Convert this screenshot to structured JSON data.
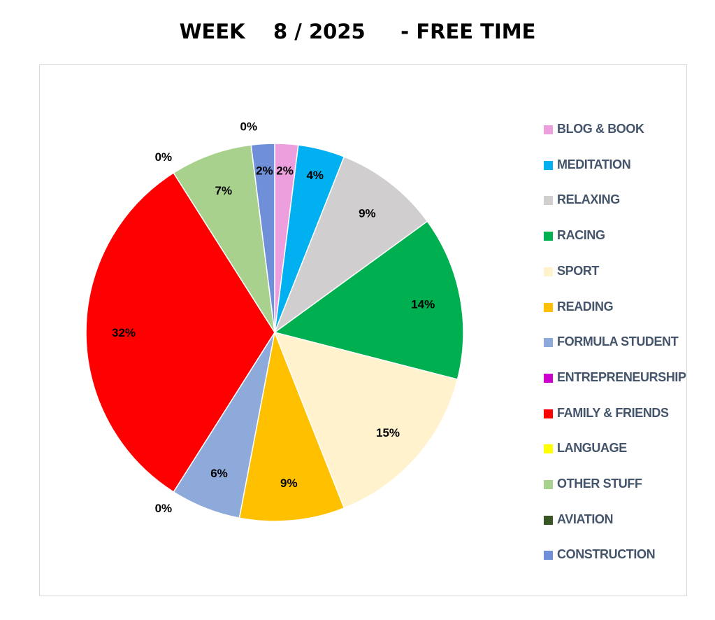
{
  "title": "WEEK    8 / 2025     - FREE TIME",
  "chart_data": {
    "type": "pie",
    "title": "WEEK    8 / 2025     - FREE TIME",
    "legend_position": "right",
    "slices": [
      {
        "name": "BLOG & BOOK",
        "value": 2,
        "label": "2%",
        "color": "#ed9fdd"
      },
      {
        "name": "MEDITATION",
        "value": 4,
        "label": "4%",
        "color": "#00b0f0"
      },
      {
        "name": "RELAXING",
        "value": 9,
        "label": "9%",
        "color": "#d0cece"
      },
      {
        "name": "RACING",
        "value": 14,
        "label": "14%",
        "color": "#00b050"
      },
      {
        "name": "SPORT",
        "value": 15,
        "label": "15%",
        "color": "#fff2cc"
      },
      {
        "name": "READING",
        "value": 9,
        "label": "9%",
        "color": "#ffc000"
      },
      {
        "name": "FORMULA STUDENT",
        "value": 6,
        "label": "6%",
        "color": "#8eaadb"
      },
      {
        "name": "ENTREPRENEURSHIP",
        "value": 0,
        "label": "0%",
        "color": "#cc00cc"
      },
      {
        "name": "FAMILY & FRIENDS",
        "value": 32,
        "label": "32%",
        "color": "#ff0000"
      },
      {
        "name": "LANGUAGE",
        "value": 0,
        "label": "0%",
        "color": "#ffff00"
      },
      {
        "name": "OTHER STUFF",
        "value": 7,
        "label": "7%",
        "color": "#a9d18e"
      },
      {
        "name": "AVIATION",
        "value": 0,
        "label": "0%",
        "color": "#375623"
      },
      {
        "name": "CONSTRUCTION",
        "value": 2,
        "label": "2%",
        "color": "#6f8fd8"
      }
    ]
  },
  "legend": {
    "items": [
      {
        "label": "BLOG & BOOK",
        "color": "#ed9fdd"
      },
      {
        "label": "MEDITATION",
        "color": "#00b0f0"
      },
      {
        "label": "RELAXING",
        "color": "#d0cece"
      },
      {
        "label": "RACING",
        "color": "#00b050"
      },
      {
        "label": "SPORT",
        "color": "#fff2cc"
      },
      {
        "label": "READING",
        "color": "#ffc000"
      },
      {
        "label": "FORMULA STUDENT",
        "color": "#8eaadb"
      },
      {
        "label": "ENTREPRENEURSHIP",
        "color": "#cc00cc"
      },
      {
        "label": "FAMILY & FRIENDS",
        "color": "#ff0000"
      },
      {
        "label": "LANGUAGE",
        "color": "#ffff00"
      },
      {
        "label": "OTHER STUFF",
        "color": "#a9d18e"
      },
      {
        "label": "AVIATION",
        "color": "#375623"
      },
      {
        "label": "CONSTRUCTION",
        "color": "#6f8fd8"
      }
    ]
  }
}
